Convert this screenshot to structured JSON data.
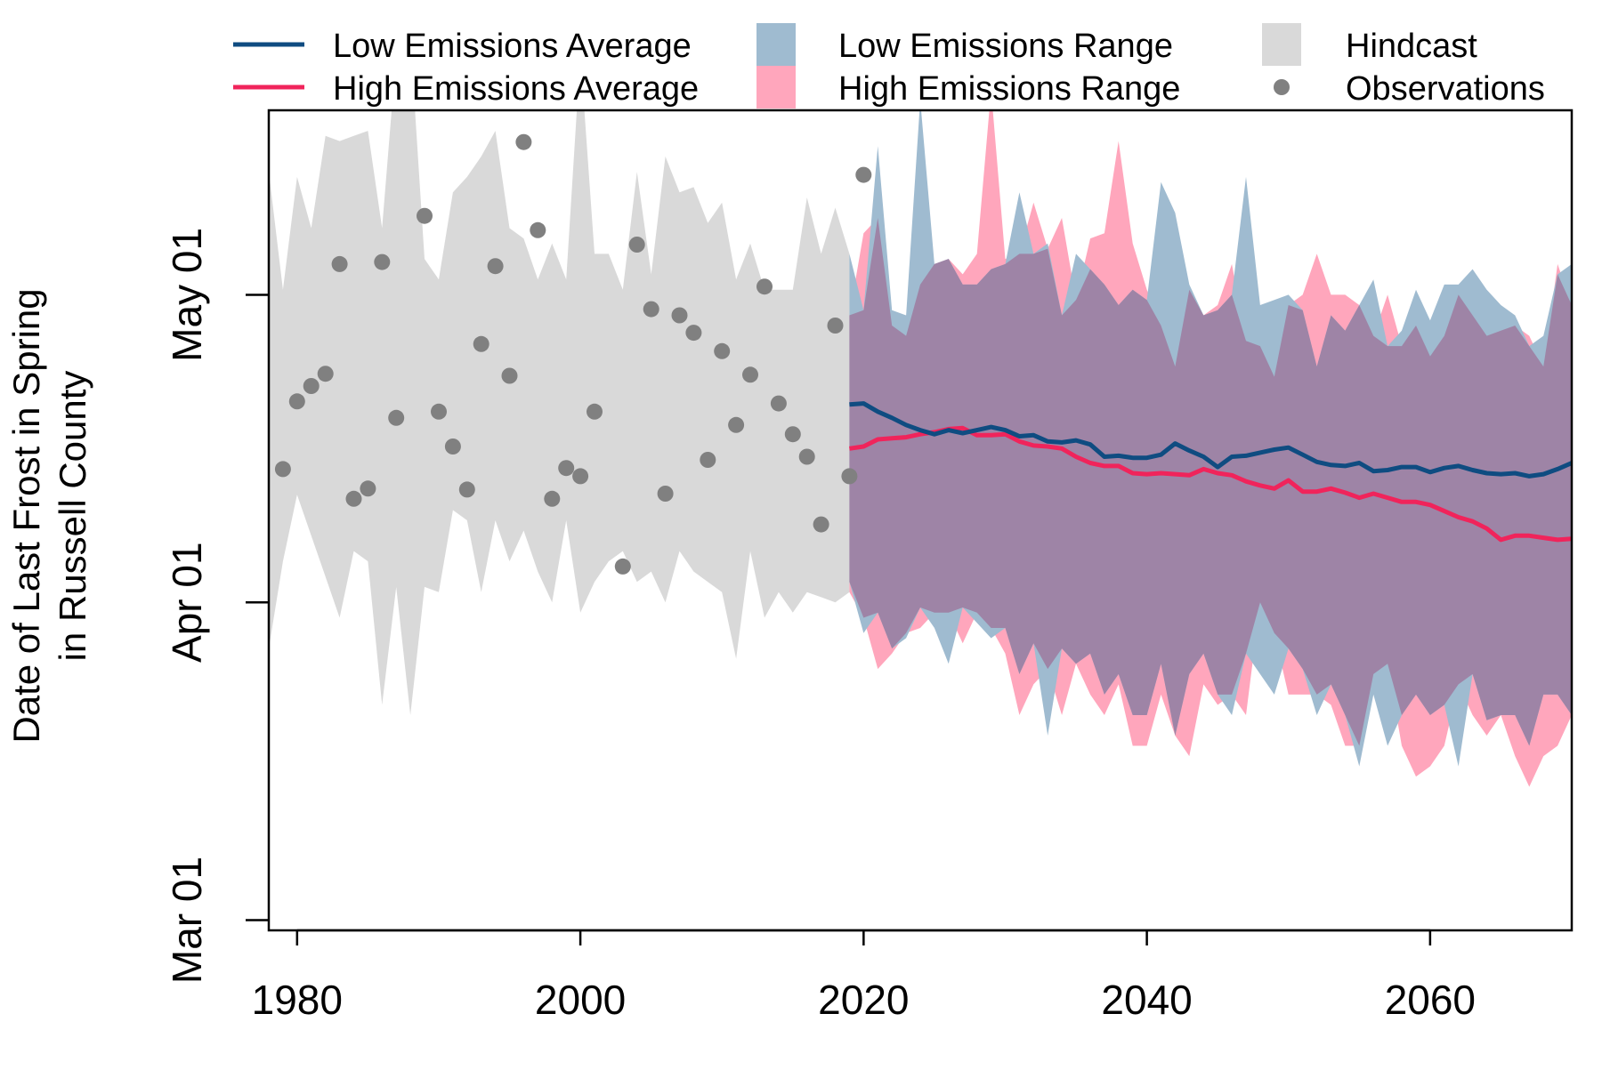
{
  "chart_data": {
    "type": "area",
    "title": "",
    "ylabel_lines": [
      "Date of Last Frost in Spring",
      "in Russell County"
    ],
    "xlabel": "",
    "xlim": [
      1978,
      2070
    ],
    "ylim_day_of_year": [
      59,
      139
    ],
    "x_ticks": [
      1980,
      2000,
      2020,
      2040,
      2060
    ],
    "y_ticks": [
      {
        "label": "Mar 01",
        "day_of_year": 60
      },
      {
        "label": "Apr 01",
        "day_of_year": 91
      },
      {
        "label": "May 01",
        "day_of_year": 121
      }
    ],
    "legend": {
      "placement": "top",
      "items": [
        {
          "key": "low_avg",
          "label": "Low Emissions Average",
          "symbol": "line",
          "color": "#0f4c81"
        },
        {
          "key": "high_avg",
          "label": "High Emissions Average",
          "symbol": "line",
          "color": "#f0245b"
        },
        {
          "key": "low_range",
          "label": "Low Emissions Range",
          "symbol": "box",
          "color": "#9fbbd0"
        },
        {
          "key": "high_range",
          "label": "High Emissions Range",
          "symbol": "box",
          "color": "#ffa6bc"
        },
        {
          "key": "hindcast",
          "label": "Hindcast",
          "symbol": "box",
          "color": "#d9d9d9"
        },
        {
          "key": "obs",
          "label": "Observations",
          "symbol": "dot",
          "color": "#808080"
        }
      ]
    },
    "colors": {
      "hindcast": "#d9d9d9",
      "low_range": "#9fbbd0",
      "high_range": "#ffa6bc",
      "overlap": "#9e84a6",
      "low_avg": "#0f4c81",
      "high_avg": "#f0245b",
      "observations": "#808080"
    },
    "hindcast_range": {
      "x": [
        1978,
        1979,
        1980,
        1981,
        1982,
        1983,
        1984,
        1985,
        1986,
        1987,
        1988,
        1989,
        1990,
        1991,
        1992,
        1993,
        1994,
        1995,
        1996,
        1997,
        1998,
        1999,
        2000,
        2001,
        2002,
        2003,
        2004,
        2005,
        2006,
        2007,
        2008,
        2009,
        2010,
        2011,
        2012,
        2013,
        2014,
        2015,
        2016,
        2017,
        2018,
        2019
      ],
      "low": [
        86.5,
        95,
        101.5,
        97.5,
        93.5,
        89.5,
        96,
        95,
        81,
        92.5,
        80,
        92.5,
        92,
        100,
        99,
        92,
        99,
        95,
        98,
        94,
        91,
        99,
        90,
        93,
        95,
        96,
        93,
        94,
        91,
        96,
        94,
        93,
        92,
        85.5,
        96,
        89.5,
        92,
        90,
        92,
        91.5,
        91,
        92
      ],
      "high": [
        133,
        121.5,
        132.5,
        127.5,
        136.5,
        136,
        136.5,
        137,
        127.5,
        144.5,
        146,
        124.5,
        122.5,
        131,
        132.5,
        134.5,
        137,
        127.5,
        126.5,
        122.5,
        126,
        122.5,
        144.5,
        125,
        125,
        121.5,
        133,
        123,
        134.5,
        131,
        131.5,
        128,
        130,
        122.5,
        126,
        121.5,
        121.5,
        121.5,
        130.5,
        125,
        129.5,
        125
      ]
    },
    "low_range": {
      "x": [
        2019,
        2020,
        2021,
        2022,
        2023,
        2024,
        2025,
        2026,
        2027,
        2028,
        2029,
        2030,
        2031,
        2032,
        2033,
        2034,
        2035,
        2036,
        2037,
        2038,
        2039,
        2040,
        2041,
        2042,
        2043,
        2044,
        2045,
        2046,
        2047,
        2048,
        2049,
        2050,
        2051,
        2052,
        2053,
        2054,
        2055,
        2056,
        2057,
        2058,
        2059,
        2060,
        2061,
        2062,
        2063,
        2064,
        2065,
        2066,
        2067,
        2068,
        2069,
        2070
      ],
      "low": [
        93,
        88,
        90,
        86.5,
        87.5,
        90.5,
        88.5,
        85,
        90.5,
        89,
        87.5,
        88.5,
        84,
        87,
        78,
        86.5,
        85,
        86,
        82,
        84,
        80,
        80,
        85,
        78,
        84,
        86,
        82,
        80,
        86,
        84,
        82,
        86.5,
        84.5,
        80,
        83,
        80,
        75,
        82,
        77,
        80,
        82,
        80,
        81,
        75,
        84,
        79.5,
        80,
        80,
        77,
        82,
        82,
        80
      ],
      "high": [
        125,
        119.5,
        135.5,
        119.5,
        119,
        140,
        124,
        124.5,
        122,
        122,
        123.5,
        124,
        131,
        125,
        126,
        119,
        125,
        123.5,
        122,
        120,
        121.5,
        120.5,
        132,
        129,
        122,
        119,
        119.5,
        121,
        132.5,
        120,
        120.5,
        121,
        119.5,
        114,
        119,
        117.5,
        120,
        122.5,
        116,
        117.5,
        121.5,
        118.5,
        122,
        122,
        123.5,
        121.5,
        120,
        119,
        116,
        117,
        123,
        124
      ]
    },
    "high_range": {
      "x": [
        2019,
        2020,
        2021,
        2022,
        2023,
        2024,
        2025,
        2026,
        2027,
        2028,
        2029,
        2030,
        2031,
        2032,
        2033,
        2034,
        2035,
        2036,
        2037,
        2038,
        2039,
        2040,
        2041,
        2042,
        2043,
        2044,
        2045,
        2046,
        2047,
        2048,
        2049,
        2050,
        2051,
        2052,
        2053,
        2054,
        2055,
        2056,
        2057,
        2058,
        2059,
        2060,
        2061,
        2062,
        2063,
        2064,
        2065,
        2066,
        2067,
        2068,
        2069,
        2070
      ],
      "low": [
        92,
        89.5,
        84.5,
        86,
        88,
        88.5,
        90,
        90,
        87,
        90,
        88.5,
        86,
        80,
        83,
        84.5,
        80,
        85,
        82,
        80,
        83,
        77,
        77,
        82,
        78,
        76,
        83,
        81,
        82,
        80,
        91,
        88,
        82,
        82,
        82,
        81,
        77,
        77,
        84,
        85,
        77,
        74,
        75,
        77,
        83,
        80,
        78,
        80,
        76,
        73,
        76,
        77,
        80
      ],
      "high": [
        119,
        127,
        128.5,
        118,
        117,
        122,
        124,
        124.5,
        123,
        125,
        141,
        124.5,
        125,
        130,
        125.5,
        128.5,
        120.5,
        126.5,
        127,
        136,
        126,
        121.5,
        118,
        114,
        121.5,
        119,
        120,
        124,
        116.5,
        116,
        113,
        120,
        121,
        125,
        121,
        121,
        120,
        117,
        121,
        116,
        118,
        115,
        117,
        121,
        119,
        117,
        117.5,
        118,
        117,
        114,
        124,
        120
      ]
    },
    "low_avg": {
      "x": [
        2019,
        2020,
        2021,
        2022,
        2023,
        2024,
        2025,
        2026,
        2027,
        2028,
        2029,
        2030,
        2031,
        2032,
        2033,
        2034,
        2035,
        2036,
        2037,
        2038,
        2039,
        2040,
        2041,
        2042,
        2043,
        2044,
        2045,
        2046,
        2047,
        2048,
        2049,
        2050,
        2051,
        2052,
        2053,
        2054,
        2055,
        2056,
        2057,
        2058,
        2059,
        2060,
        2061,
        2062,
        2063,
        2064,
        2065,
        2066,
        2067,
        2068,
        2069,
        2070
      ],
      "y": [
        110.3,
        110.4,
        109.6,
        109,
        108.3,
        107.8,
        107.4,
        107.8,
        107.5,
        107.8,
        108.1,
        107.8,
        107.2,
        107.3,
        106.7,
        106.6,
        106.8,
        106.4,
        105.2,
        105.3,
        105.1,
        105.1,
        105.4,
        106.5,
        105.8,
        105.2,
        104.2,
        105.2,
        105.3,
        105.6,
        105.9,
        106.1,
        105.4,
        104.7,
        104.4,
        104.3,
        104.6,
        103.8,
        103.9,
        104.2,
        104.2,
        103.7,
        104.1,
        104.3,
        103.9,
        103.6,
        103.5,
        103.6,
        103.3,
        103.5,
        104,
        104.6
      ]
    },
    "high_avg": {
      "x": [
        2019,
        2020,
        2021,
        2022,
        2023,
        2024,
        2025,
        2026,
        2027,
        2028,
        2029,
        2030,
        2031,
        2032,
        2033,
        2034,
        2035,
        2036,
        2037,
        2038,
        2039,
        2040,
        2041,
        2042,
        2043,
        2044,
        2045,
        2046,
        2047,
        2048,
        2049,
        2050,
        2051,
        2052,
        2053,
        2054,
        2055,
        2056,
        2057,
        2058,
        2059,
        2060,
        2061,
        2062,
        2063,
        2064,
        2065,
        2066,
        2067,
        2068,
        2069,
        2070
      ],
      "y": [
        106,
        106.2,
        106.9,
        107,
        107.1,
        107.4,
        107.6,
        107.9,
        108,
        107.3,
        107.3,
        107.4,
        106.7,
        106.3,
        106.2,
        106,
        105.2,
        104.6,
        104.3,
        104.3,
        103.6,
        103.5,
        103.6,
        103.5,
        103.4,
        104,
        103.6,
        103.4,
        102.8,
        102.4,
        102.1,
        102.9,
        101.8,
        101.8,
        102.1,
        101.7,
        101.2,
        101.6,
        101.2,
        100.8,
        100.8,
        100.5,
        99.9,
        99.3,
        98.9,
        98.2,
        97.1,
        97.5,
        97.5,
        97.3,
        97.1,
        97.2
      ]
    },
    "observations": {
      "x": [
        1979,
        1980,
        1981,
        1982,
        1983,
        1984,
        1985,
        1986,
        1987,
        1988,
        1989,
        1990,
        1991,
        1992,
        1993,
        1994,
        1995,
        1996,
        1997,
        1998,
        1999,
        2000,
        2001,
        2002,
        2003,
        2004,
        2005,
        2006,
        2007,
        2008,
        2009,
        2010,
        2011,
        2012,
        2013,
        2014,
        2015,
        2016,
        2017,
        2018,
        2019,
        2020
      ],
      "y": [
        104,
        110.6,
        112.1,
        113.3,
        124,
        101.1,
        102.1,
        124.2,
        109,
        143.3,
        128.7,
        109.6,
        106.2,
        102,
        116.2,
        123.8,
        113.1,
        135.9,
        127.3,
        101.1,
        104.1,
        103.3,
        109.6,
        142.7,
        94.5,
        125.9,
        119.6,
        101.6,
        119,
        117.3,
        104.9,
        115.5,
        108.3,
        113.2,
        121.8,
        110.4,
        107.4,
        105.2,
        98.6,
        118,
        103.3,
        132.7
      ]
    }
  }
}
